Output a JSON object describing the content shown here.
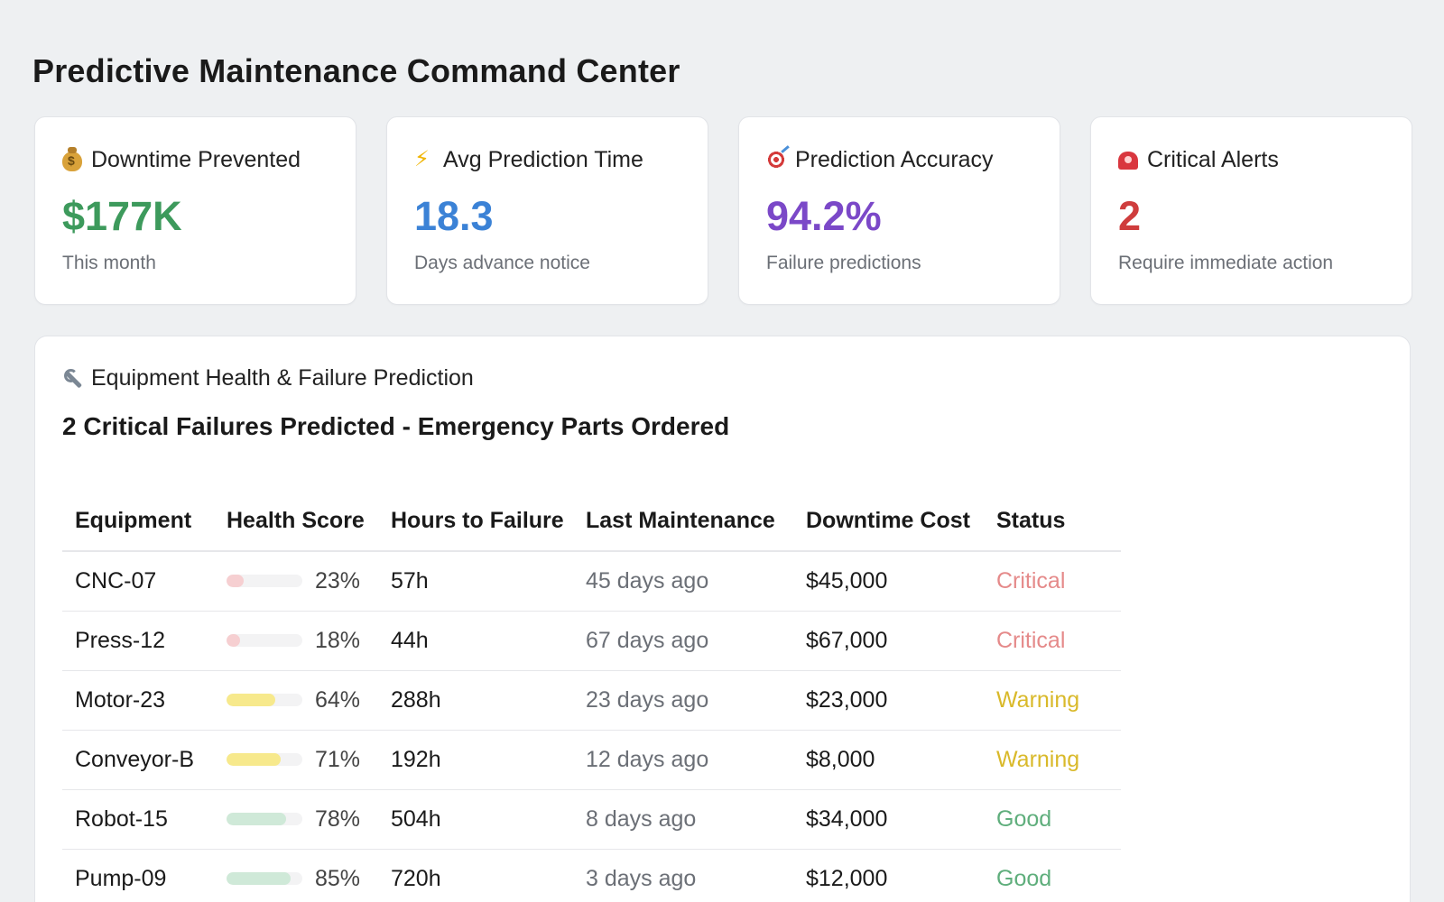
{
  "page": {
    "title": "Predictive Maintenance Command Center"
  },
  "kpis": [
    {
      "icon": "money-bag-icon",
      "label": "Downtime Prevented",
      "value": "$177K",
      "sub": "This month",
      "color": "#3d9a5c"
    },
    {
      "icon": "lightning-icon",
      "label": "Avg Prediction Time",
      "value": "18.3",
      "sub": "Days advance notice",
      "color": "#3b82d6"
    },
    {
      "icon": "target-icon",
      "label": "Prediction Accuracy",
      "value": "94.2%",
      "sub": "Failure predictions",
      "color": "#7b48c8"
    },
    {
      "icon": "siren-icon",
      "label": "Critical Alerts",
      "value": "2",
      "sub": "Require immediate action",
      "color": "#cf3d3d"
    }
  ],
  "panel": {
    "icon": "wrench-icon",
    "heading": "Equipment Health & Failure Prediction",
    "subtitle": "2 Critical Failures Predicted - Emergency Parts Ordered",
    "columns": [
      "Equipment",
      "Health Score",
      "Hours to Failure",
      "Last Maintenance",
      "Downtime Cost",
      "Status"
    ],
    "rows": [
      {
        "equipment": "CNC-07",
        "health": 23,
        "health_label": "23%",
        "hours": "57h",
        "last": "45 days ago",
        "cost": "$45,000",
        "status": "Critical"
      },
      {
        "equipment": "Press-12",
        "health": 18,
        "health_label": "18%",
        "hours": "44h",
        "last": "67 days ago",
        "cost": "$67,000",
        "status": "Critical"
      },
      {
        "equipment": "Motor-23",
        "health": 64,
        "health_label": "64%",
        "hours": "288h",
        "last": "23 days ago",
        "cost": "$23,000",
        "status": "Warning"
      },
      {
        "equipment": "Conveyor-B",
        "health": 71,
        "health_label": "71%",
        "hours": "192h",
        "last": "12 days ago",
        "cost": "$8,000",
        "status": "Warning"
      },
      {
        "equipment": "Robot-15",
        "health": 78,
        "health_label": "78%",
        "hours": "504h",
        "last": "8 days ago",
        "cost": "$34,000",
        "status": "Good"
      },
      {
        "equipment": "Pump-09",
        "health": 85,
        "health_label": "85%",
        "hours": "720h",
        "last": "3 days ago",
        "cost": "$12,000",
        "status": "Good"
      }
    ]
  },
  "colors": {
    "status": {
      "Critical": "#e58a8a",
      "Warning": "#d9b92a",
      "Good": "#5fae7c"
    },
    "bar": {
      "Critical": "#f6cfd1",
      "Warning": "#f7e98c",
      "Good": "#cfe9d8"
    }
  }
}
